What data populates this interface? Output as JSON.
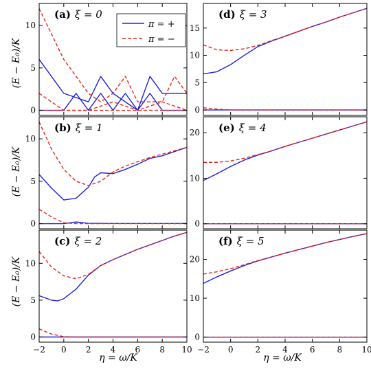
{
  "figure": {
    "ylabel": "(E − E₀)/K",
    "xlabel": "η = ω/K"
  },
  "legend": {
    "entries": [
      {
        "label": "π = +",
        "color": "#1f1fd6",
        "dash": "solid"
      },
      {
        "label": "π = −",
        "color": "#e8221b",
        "dash": "dashed"
      }
    ]
  },
  "chart_data": [
    {
      "type": "line",
      "label": "(a)",
      "xi_text": "ξ = 0",
      "xlim": [
        -2,
        10
      ],
      "ylim": [
        -0.6,
        12.6
      ],
      "yticks": [
        0,
        5,
        10
      ],
      "xticks": [
        -2,
        0,
        2,
        4,
        6,
        8,
        10
      ],
      "series": [
        {
          "name": "π = +",
          "color": "#1f1fd6",
          "x": [
            -2,
            0,
            2,
            3,
            4,
            5,
            6,
            7,
            8,
            10
          ],
          "y": [
            6,
            2,
            1,
            4,
            2,
            1,
            0,
            4,
            2,
            2
          ]
        },
        {
          "name": "π = +",
          "color": "#1f1fd6",
          "x": [
            -2,
            0,
            1,
            2,
            3,
            4,
            5,
            6,
            7,
            8,
            9,
            10
          ],
          "y": [
            0,
            0,
            2,
            0,
            2,
            0,
            2,
            0,
            2,
            0,
            0,
            0
          ]
        },
        {
          "name": "π = −",
          "color": "#e8221b",
          "x": [
            -2,
            0,
            2,
            3,
            4,
            5,
            6,
            8,
            9,
            10
          ],
          "y": [
            12,
            6,
            2,
            1,
            2,
            4,
            1,
            1,
            4,
            2
          ]
        },
        {
          "name": "π = −",
          "color": "#e8221b",
          "x": [
            -2,
            0,
            2,
            4,
            6,
            8,
            10
          ],
          "y": [
            2,
            0,
            0,
            1,
            0,
            1,
            0
          ]
        },
        {
          "name": "π = −",
          "color": "#e8221b",
          "x": [
            -2,
            10
          ],
          "y": [
            0,
            0
          ]
        }
      ]
    },
    {
      "type": "line",
      "label": "(b)",
      "xi_text": "ξ = 1",
      "xlim": [
        -2,
        10
      ],
      "ylim": [
        -0.6,
        12.6
      ],
      "yticks": [
        0,
        5,
        10
      ],
      "xticks": [
        -2,
        0,
        2,
        4,
        6,
        8,
        10
      ],
      "series": [
        {
          "name": "π = +",
          "color": "#1f1fd6",
          "x": [
            -2,
            -1,
            0,
            1,
            2,
            2.5,
            3,
            4,
            5,
            6,
            7,
            8,
            9,
            10
          ],
          "y": [
            5.8,
            4.2,
            2.8,
            3.0,
            4.3,
            5.5,
            6.0,
            5.9,
            6.4,
            7.0,
            7.7,
            8.0,
            8.5,
            9.0
          ]
        },
        {
          "name": "π = +",
          "color": "#1f1fd6",
          "x": [
            -2,
            0,
            1,
            2,
            4,
            6,
            8,
            10
          ],
          "y": [
            0.0,
            0.0,
            0.2,
            0.05,
            0.02,
            0.02,
            0.02,
            0.02
          ]
        },
        {
          "name": "π = −",
          "color": "#e8221b",
          "x": [
            -2,
            -1,
            0,
            1,
            2,
            3,
            4,
            5,
            6,
            7,
            8,
            9,
            10
          ],
          "y": [
            12.0,
            8.8,
            6.4,
            5.0,
            4.5,
            5.0,
            6.1,
            6.8,
            7.3,
            7.8,
            8.2,
            8.6,
            9.0
          ]
        },
        {
          "name": "π = −",
          "color": "#e8221b",
          "x": [
            -2,
            -1,
            0,
            1,
            2,
            4,
            6,
            8,
            10
          ],
          "y": [
            1.7,
            0.8,
            0.1,
            0.0,
            0.0,
            0.0,
            0.0,
            0.0,
            0.0
          ]
        }
      ]
    },
    {
      "type": "line",
      "label": "(c)",
      "xi_text": "ξ = 2",
      "xlim": [
        -2,
        10
      ],
      "ylim": [
        -0.7,
        14.5
      ],
      "yticks": [
        0,
        5,
        10
      ],
      "xticks": [
        -2,
        0,
        2,
        4,
        6,
        8,
        10
      ],
      "series": [
        {
          "name": "π = +",
          "color": "#1f1fd6",
          "x": [
            -2,
            -1,
            -0.5,
            0,
            1,
            2,
            3,
            4,
            5,
            6,
            7,
            8,
            9,
            10
          ],
          "y": [
            5.6,
            5.0,
            4.9,
            5.2,
            6.5,
            8.4,
            9.7,
            10.5,
            11.2,
            11.9,
            12.5,
            13.1,
            13.7,
            14.2
          ]
        },
        {
          "name": "π = −",
          "color": "#e8221b",
          "x": [
            -2,
            -1,
            0,
            1,
            2,
            3,
            4,
            5,
            6,
            7,
            8,
            9,
            10
          ],
          "y": [
            11.6,
            9.5,
            8.3,
            7.9,
            8.5,
            9.7,
            10.5,
            11.2,
            11.9,
            12.5,
            13.1,
            13.7,
            14.2
          ]
        },
        {
          "name": "π = +",
          "color": "#1f1fd6",
          "x": [
            -2,
            10
          ],
          "y": [
            0,
            0
          ]
        },
        {
          "name": "π = −",
          "color": "#e8221b",
          "x": [
            -2,
            -1,
            0,
            1,
            2,
            4,
            10
          ],
          "y": [
            1.1,
            0.4,
            0.05,
            0.0,
            0.0,
            0.0,
            0.0
          ]
        }
      ]
    },
    {
      "type": "line",
      "label": "(d)",
      "xi_text": "ξ = 3",
      "xlim": [
        -2,
        10
      ],
      "ylim": [
        -1.0,
        19.5
      ],
      "yticks": [
        0,
        5,
        10,
        15
      ],
      "xticks": [
        -2,
        0,
        2,
        4,
        6,
        8,
        10
      ],
      "series": [
        {
          "name": "π = +",
          "color": "#1f1fd6",
          "x": [
            -2,
            -1,
            0,
            1,
            2,
            3,
            4,
            5,
            6,
            7,
            8,
            9,
            10
          ],
          "y": [
            6.6,
            7.0,
            8.3,
            10.0,
            11.6,
            12.6,
            13.5,
            14.4,
            15.3,
            16.1,
            17.0,
            17.8,
            18.6
          ]
        },
        {
          "name": "π = −",
          "color": "#e8221b",
          "x": [
            -2,
            -1,
            0,
            1,
            2,
            3,
            4,
            5,
            6,
            7,
            8,
            9,
            10
          ],
          "y": [
            11.9,
            11.0,
            10.9,
            11.2,
            11.8,
            12.7,
            13.5,
            14.4,
            15.3,
            16.1,
            17.0,
            17.8,
            18.6
          ]
        },
        {
          "name": "π = +",
          "color": "#1f1fd6",
          "x": [
            -2,
            10
          ],
          "y": [
            0,
            0
          ]
        },
        {
          "name": "π = −",
          "color": "#e8221b",
          "x": [
            -2,
            -1,
            0,
            10
          ],
          "y": [
            0.4,
            0.15,
            0.0,
            0.0
          ]
        }
      ]
    },
    {
      "type": "line",
      "label": "(e)",
      "xi_text": "ξ = 4",
      "xlim": [
        -2,
        10
      ],
      "ylim": [
        -1.1,
        23.5
      ],
      "yticks": [
        0,
        10,
        20
      ],
      "xticks": [
        -2,
        0,
        2,
        4,
        6,
        8,
        10
      ],
      "series": [
        {
          "name": "π = +",
          "color": "#1f1fd6",
          "x": [
            -2,
            -1,
            0,
            1,
            2,
            3,
            4,
            5,
            6,
            7,
            8,
            9,
            10
          ],
          "y": [
            9.5,
            11.0,
            12.6,
            14.0,
            15.1,
            16.0,
            17.0,
            17.9,
            18.8,
            19.7,
            20.6,
            21.5,
            22.4
          ]
        },
        {
          "name": "π = −",
          "color": "#e8221b",
          "x": [
            -2,
            -1,
            0,
            1,
            2,
            3,
            4,
            5,
            6,
            7,
            8,
            9,
            10
          ],
          "y": [
            13.5,
            13.5,
            13.8,
            14.4,
            15.2,
            16.0,
            17.0,
            17.9,
            18.8,
            19.7,
            20.6,
            21.5,
            22.4
          ]
        },
        {
          "name": "π = +",
          "color": "#1f1fd6",
          "x": [
            -2,
            10
          ],
          "y": [
            0,
            0
          ]
        },
        {
          "name": "π = −",
          "color": "#e8221b",
          "x": [
            -2,
            10
          ],
          "y": [
            0,
            0
          ]
        }
      ]
    },
    {
      "type": "line",
      "label": "(f)",
      "xi_text": "ξ = 5",
      "xlim": [
        -2,
        10
      ],
      "ylim": [
        -1.3,
        27.5
      ],
      "yticks": [
        0,
        10,
        20
      ],
      "xticks": [
        -2,
        0,
        2,
        4,
        6,
        8,
        10
      ],
      "series": [
        {
          "name": "π = +",
          "color": "#1f1fd6",
          "x": [
            -2,
            -1,
            0,
            1,
            2,
            3,
            4,
            5,
            6,
            7,
            8,
            9,
            10
          ],
          "y": [
            13.8,
            15.5,
            17.0,
            18.4,
            19.6,
            20.6,
            21.6,
            22.5,
            23.4,
            24.3,
            25.1,
            25.9,
            26.6
          ]
        },
        {
          "name": "π = −",
          "color": "#e8221b",
          "x": [
            -2,
            -1,
            0,
            1,
            2,
            3,
            4,
            5,
            6,
            7,
            8,
            9,
            10
          ],
          "y": [
            16.2,
            16.8,
            17.6,
            18.6,
            19.7,
            20.6,
            21.6,
            22.5,
            23.4,
            24.3,
            25.1,
            25.9,
            26.6
          ]
        },
        {
          "name": "π = +",
          "color": "#1f1fd6",
          "x": [
            -2,
            10
          ],
          "y": [
            0,
            0
          ]
        },
        {
          "name": "π = −",
          "color": "#e8221b",
          "x": [
            -2,
            10
          ],
          "y": [
            0,
            0
          ]
        }
      ]
    }
  ]
}
